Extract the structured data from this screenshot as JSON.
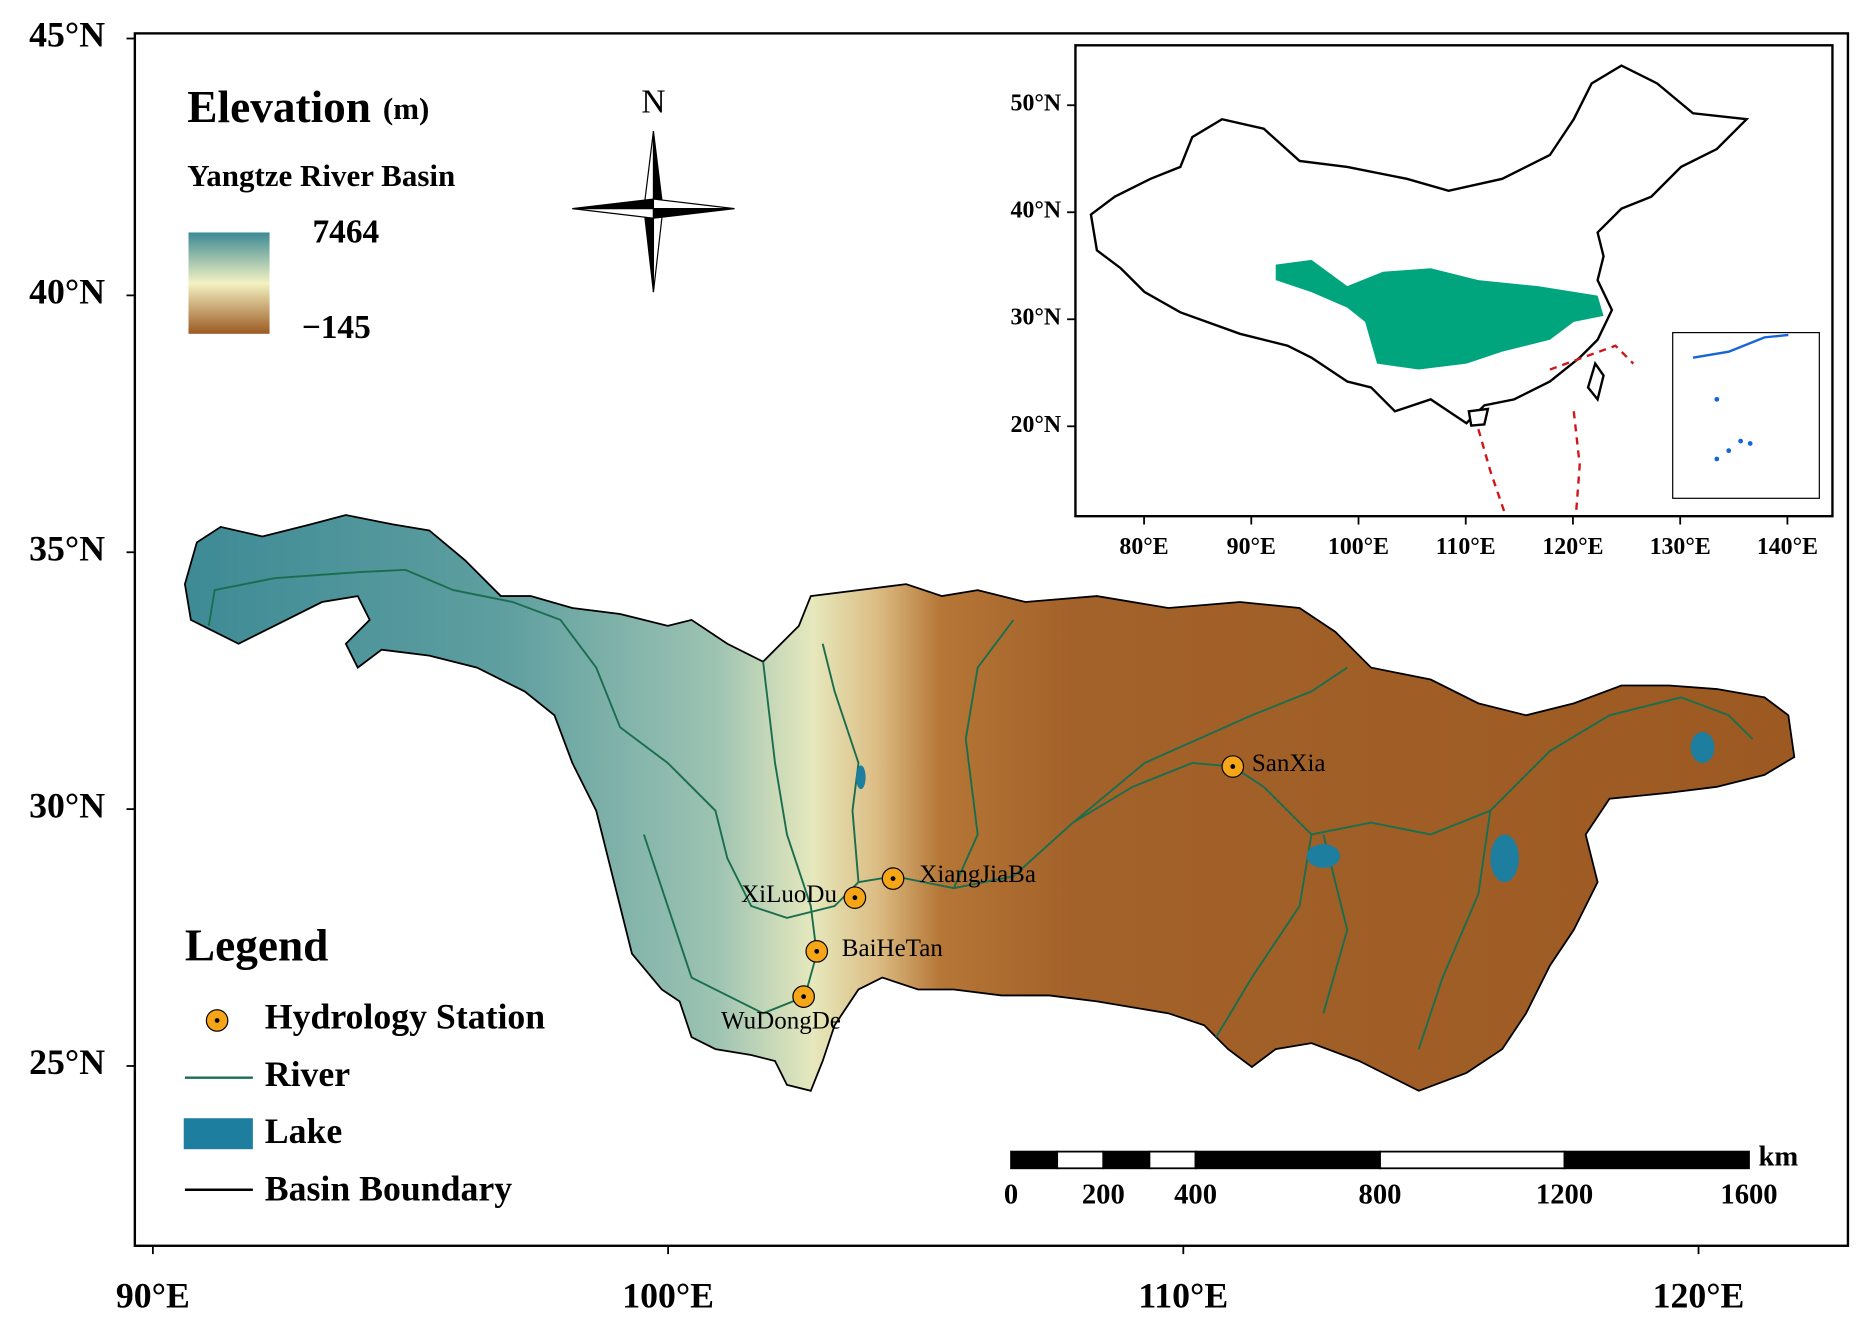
{
  "map": {
    "xlim": [
      89.65,
      122.9
    ],
    "ylim": [
      21.5,
      45.1
    ],
    "xticks": [
      {
        "value": 90,
        "label": "90°E"
      },
      {
        "value": 100,
        "label": "100°E"
      },
      {
        "value": 110,
        "label": "110°E"
      },
      {
        "value": 120,
        "label": "120°E"
      }
    ],
    "yticks": [
      {
        "value": 25,
        "label": "25°N"
      },
      {
        "value": 30,
        "label": "30°N"
      },
      {
        "value": 35,
        "label": "35°N"
      },
      {
        "value": 40,
        "label": "40°N"
      },
      {
        "value": 45,
        "label": "45°N"
      }
    ]
  },
  "elevation_legend": {
    "title": "Elevation",
    "unit": "(m)",
    "subtitle": "Yangtze River Basin",
    "max": 7464,
    "min": {
      "value": -145,
      "label": "−145"
    }
  },
  "north_arrow": "N",
  "stations": [
    "SanXia",
    "XiangJiaBa",
    "XiLuoDu",
    "BaiHeTan",
    "WuDongDe"
  ],
  "legend": {
    "title": "Legend",
    "items": [
      "Hydrology Station",
      "River",
      "Lake",
      "Basin Boundary"
    ]
  },
  "scale_bar": {
    "ticks": [
      0,
      200,
      400,
      800,
      1200,
      1600
    ],
    "unit": "km"
  },
  "inset": {
    "xlim": [
      73.6,
      144.2
    ],
    "ylim": [
      11.6,
      55.6
    ],
    "xticks": [
      {
        "value": 80,
        "label": "80°E"
      },
      {
        "value": 90,
        "label": "90°E"
      },
      {
        "value": 100,
        "label": "100°E"
      },
      {
        "value": 110,
        "label": "110°E"
      },
      {
        "value": 120,
        "label": "120°E"
      },
      {
        "value": 130,
        "label": "130°E"
      },
      {
        "value": 140,
        "label": "140°E"
      }
    ],
    "yticks": [
      {
        "value": 20,
        "label": "20°N"
      },
      {
        "value": 30,
        "label": "30°N"
      },
      {
        "value": 40,
        "label": "40°N"
      },
      {
        "value": 50,
        "label": "50°N"
      }
    ]
  }
}
